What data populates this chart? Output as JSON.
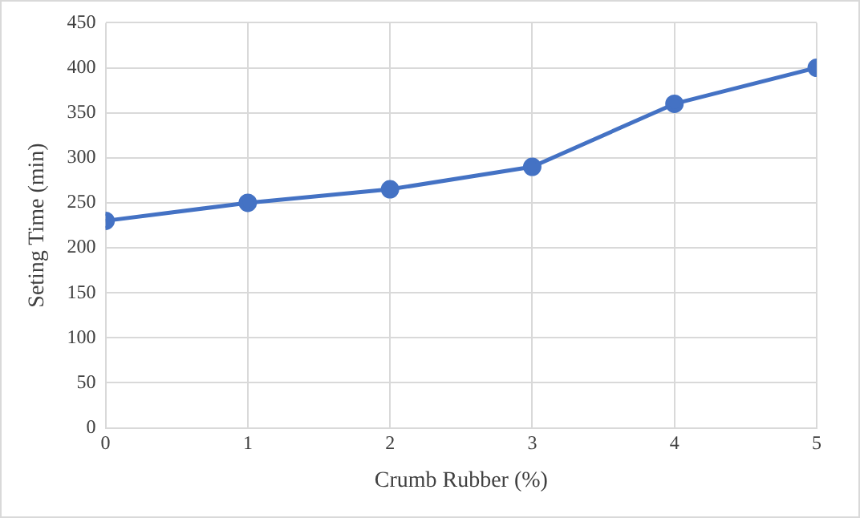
{
  "chart_data": {
    "type": "line",
    "xlabel": "Crumb Rubber (%)",
    "ylabel": "Seting Time (min)",
    "x": [
      0,
      1,
      2,
      3,
      4,
      5
    ],
    "series": [
      {
        "color": "#4472c4",
        "values": [
          230,
          250,
          265,
          290,
          360,
          400
        ]
      }
    ],
    "xlim": [
      0,
      5
    ],
    "xticks": [
      0,
      1,
      2,
      3,
      4,
      5
    ],
    "ylim": [
      0,
      450
    ],
    "yticks": [
      0,
      50,
      100,
      150,
      200,
      250,
      300,
      350,
      400,
      450
    ],
    "grid": true,
    "marker": "circle",
    "line_style": "solid",
    "legend": false
  }
}
